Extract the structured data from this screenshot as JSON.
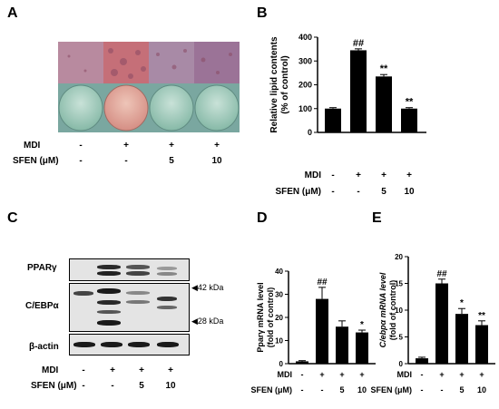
{
  "panels": {
    "A": "A",
    "B": "B",
    "C": "C",
    "D": "D",
    "E": "E"
  },
  "treatments": {
    "mdi_label": "MDI",
    "sfen_label": "SFEN (μM)",
    "mdi": [
      "-",
      "+",
      "+",
      "+"
    ],
    "sfen": [
      "-",
      "-",
      "5",
      "10"
    ]
  },
  "blot": {
    "rows": [
      "PPARγ",
      "C/EBPα",
      "β-actin"
    ],
    "markers": [
      "42 kDa",
      "28 kDa"
    ]
  },
  "colors": {
    "bar": "#000000",
    "background": "#ffffff",
    "plate": "#8fc2b0",
    "cells_pink": "#c0707e",
    "cells_purple": "#9a6a95"
  },
  "chart_data": [
    {
      "type": "bar",
      "panel": "B",
      "categories": [
        "1",
        "2",
        "3",
        "4"
      ],
      "values": [
        100,
        345,
        235,
        100
      ],
      "errors": [
        4,
        6,
        8,
        4
      ],
      "ylabel_lines": [
        "Relative lipid contents",
        "(% of control)"
      ],
      "ylim": [
        0,
        400
      ],
      "yticks": [
        "0",
        "100",
        "200",
        "300",
        "400"
      ],
      "significance": [
        "",
        "##",
        "**",
        "**"
      ]
    },
    {
      "type": "bar",
      "panel": "D",
      "categories": [
        "1",
        "2",
        "3",
        "4"
      ],
      "values": [
        1,
        28,
        16,
        13.5
      ],
      "errors": [
        0.3,
        5,
        2.5,
        1
      ],
      "ylabel_lines": [
        "Pparγ mRNA level",
        "(fold of control)"
      ],
      "ylim": [
        0,
        40
      ],
      "yticks": [
        "0",
        "10",
        "20",
        "30",
        "40"
      ],
      "significance": [
        "",
        "##",
        "",
        "*"
      ]
    },
    {
      "type": "bar",
      "panel": "E",
      "categories": [
        "1",
        "2",
        "3",
        "4"
      ],
      "values": [
        1,
        15,
        9.3,
        7.2
      ],
      "errors": [
        0.2,
        0.8,
        1,
        0.8
      ],
      "ylabel_lines": [
        "C/ebpα mRNA level",
        "(fold of control)"
      ],
      "ylim": [
        0,
        20
      ],
      "yticks": [
        "0",
        "5",
        "10",
        "15",
        "20"
      ],
      "significance": [
        "",
        "##",
        "*",
        "**"
      ]
    }
  ]
}
